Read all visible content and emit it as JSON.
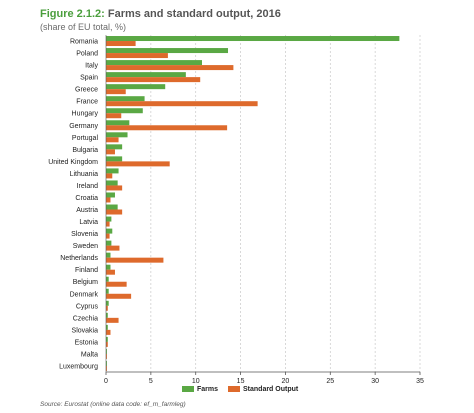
{
  "header": {
    "figure_label": "Figure 2.1.2:",
    "title_text": "Farms and standard output, 2016",
    "subtitle": "(share of EU total, %)"
  },
  "source": "Source: Eurostat (online data code: ef_m_farmleg)",
  "colors": {
    "farms": "#5aa844",
    "standard_output": "#de6a2c",
    "grid": "#c8c8c8",
    "axis": "#555555"
  },
  "chart_data": {
    "type": "bar",
    "orientation": "horizontal",
    "title": "Farms and standard output, 2016",
    "subtitle": "(share of EU total, %)",
    "xlim": [
      0,
      35
    ],
    "xticks": [
      0,
      5,
      10,
      15,
      20,
      25,
      30,
      35
    ],
    "grid": true,
    "legend_position": "bottom",
    "categories": [
      "Romania",
      "Poland",
      "Italy",
      "Spain",
      "Greece",
      "France",
      "Hungary",
      "Germany",
      "Portugal",
      "Bulgaria",
      "United Kingdom",
      "Lithuania",
      "Ireland",
      "Croatia",
      "Austria",
      "Latvia",
      "Slovenia",
      "Sweden",
      "Netherlands",
      "Finland",
      "Belgium",
      "Denmark",
      "Cyprus",
      "Czechia",
      "Slovakia",
      "Estonia",
      "Malta",
      "Luxembourg"
    ],
    "series": [
      {
        "name": "Farms",
        "values": [
          32.7,
          13.6,
          10.7,
          8.9,
          6.6,
          4.3,
          4.1,
          2.6,
          2.4,
          1.8,
          1.8,
          1.4,
          1.3,
          1.0,
          1.3,
          0.6,
          0.7,
          0.6,
          0.5,
          0.5,
          0.3,
          0.3,
          0.3,
          0.2,
          0.2,
          0.2,
          0.1,
          0.1
        ]
      },
      {
        "name": "Standard Output",
        "values": [
          3.3,
          6.9,
          14.2,
          10.5,
          2.2,
          16.9,
          1.7,
          13.5,
          1.4,
          1.0,
          7.1,
          0.7,
          1.8,
          0.5,
          1.8,
          0.4,
          0.4,
          1.5,
          6.4,
          1.0,
          2.3,
          2.8,
          0.2,
          1.4,
          0.5,
          0.2,
          0.1,
          0.1
        ]
      }
    ]
  }
}
